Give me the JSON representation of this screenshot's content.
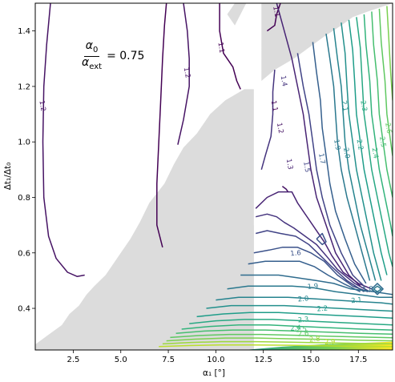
{
  "chart_data": {
    "type": "contour",
    "xlabel": "α₁ [°]",
    "ylabel": "Δt₁/Δt₀",
    "xlim": [
      0.5,
      19.3
    ],
    "ylim": [
      0.25,
      1.5
    ],
    "xticks": [
      "2.5",
      "5.0",
      "7.5",
      "10.0",
      "12.5",
      "15.0",
      "17.5"
    ],
    "yticks": [
      "0.4",
      "0.6",
      "0.8",
      "1.0",
      "1.2",
      "1.4"
    ],
    "grid": false,
    "annotation": {
      "numerator": "α",
      "numerator_sub": "0",
      "denominator": "α",
      "denominator_sub": "ext",
      "equals": "= 0.75"
    },
    "masked_region_color": "#dcdcdc",
    "colormap": "viridis",
    "level_labels": [
      {
        "text": "1.1",
        "x": 13.2,
        "y": 1.47
      },
      {
        "text": "1.1",
        "x": 10.3,
        "y": 1.34
      },
      {
        "text": "1.2",
        "x": 8.5,
        "y": 1.25
      },
      {
        "text": "1.2",
        "x": 0.9,
        "y": 1.13
      },
      {
        "text": "1.4",
        "x": 13.6,
        "y": 1.22
      },
      {
        "text": "1.1",
        "x": 13.1,
        "y": 1.13
      },
      {
        "text": "1.2",
        "x": 13.4,
        "y": 1.05
      },
      {
        "text": "1.3",
        "x": 13.9,
        "y": 0.92
      },
      {
        "text": "1.5",
        "x": 14.8,
        "y": 0.91
      },
      {
        "text": "1.7",
        "x": 15.6,
        "y": 0.94
      },
      {
        "text": "1.9",
        "x": 16.4,
        "y": 0.99
      },
      {
        "text": "2.0",
        "x": 16.9,
        "y": 0.96
      },
      {
        "text": "2.1",
        "x": 16.8,
        "y": 1.13
      },
      {
        "text": "2.2",
        "x": 17.6,
        "y": 0.99
      },
      {
        "text": "2.3",
        "x": 17.8,
        "y": 1.13
      },
      {
        "text": "2.4",
        "x": 18.4,
        "y": 0.96
      },
      {
        "text": "2.5",
        "x": 18.8,
        "y": 1.0
      },
      {
        "text": "2.6",
        "x": 19.1,
        "y": 1.05
      },
      {
        "text": "1.6",
        "x": 14.2,
        "y": 0.6
      },
      {
        "text": "1.9",
        "x": 15.1,
        "y": 0.48
      },
      {
        "text": "1.8",
        "x": 18.0,
        "y": 0.47
      },
      {
        "text": "2.0",
        "x": 14.6,
        "y": 0.435
      },
      {
        "text": "2.1",
        "x": 17.4,
        "y": 0.43
      },
      {
        "text": "2.2",
        "x": 15.6,
        "y": 0.4
      },
      {
        "text": "2.3",
        "x": 14.6,
        "y": 0.36
      },
      {
        "text": "2.4",
        "x": 14.2,
        "y": 0.33
      },
      {
        "text": "2.5",
        "x": 14.5,
        "y": 0.325
      },
      {
        "text": "2.6",
        "x": 14.6,
        "y": 0.31
      },
      {
        "text": "2.8",
        "x": 15.2,
        "y": 0.29
      },
      {
        "text": "2.9",
        "x": 16.0,
        "y": 0.28
      }
    ]
  }
}
